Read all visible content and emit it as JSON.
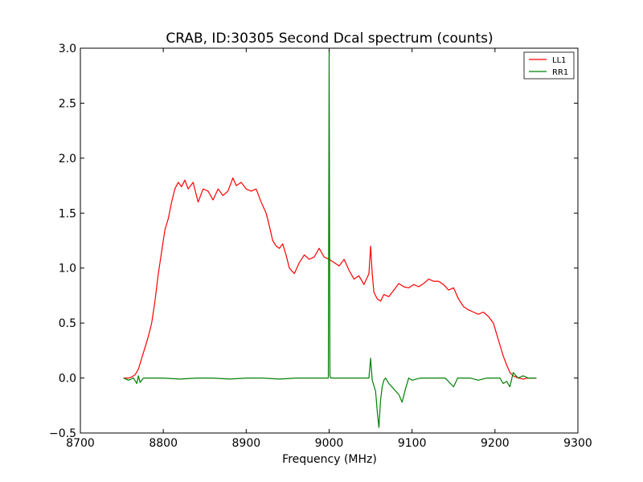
{
  "chart_data": {
    "type": "line",
    "title": "CRAB, ID:30305 Second Dcal spectrum (counts)",
    "xlabel": "Frequency (MHz)",
    "ylabel": "",
    "xlim": [
      8700,
      9300
    ],
    "ylim": [
      -0.5,
      3.0
    ],
    "x_ticks": [
      "8700",
      "8800",
      "8900",
      "9000",
      "9100",
      "9200",
      "9300"
    ],
    "y_ticks": [
      "−0.5",
      "0.0",
      "0.5",
      "1.0",
      "1.5",
      "2.0",
      "2.5",
      "3.0"
    ],
    "grid": false,
    "legend_position": "top-right",
    "series": [
      {
        "name": "LL1",
        "color": "#ff0000",
        "x": [
          8752,
          8758,
          8762,
          8766,
          8770,
          8774,
          8778,
          8782,
          8786,
          8790,
          8794,
          8798,
          8802,
          8806,
          8810,
          8814,
          8818,
          8822,
          8826,
          8830,
          8836,
          8842,
          8848,
          8854,
          8860,
          8866,
          8872,
          8878,
          8884,
          8888,
          8894,
          8900,
          8906,
          8912,
          8918,
          8924,
          8928,
          8932,
          8936,
          8940,
          8944,
          8948,
          8952,
          8958,
          8964,
          8970,
          8976,
          8982,
          8988,
          8994,
          9000,
          9006,
          9012,
          9018,
          9024,
          9030,
          9036,
          9042,
          9048,
          9050,
          9052,
          9054,
          9058,
          9062,
          9066,
          9072,
          9078,
          9084,
          9090,
          9096,
          9102,
          9108,
          9114,
          9120,
          9126,
          9132,
          9138,
          9144,
          9150,
          9156,
          9162,
          9168,
          9174,
          9180,
          9186,
          9192,
          9198,
          9202,
          9206,
          9210,
          9214,
          9218,
          9222,
          9228,
          9234,
          9240,
          9246,
          9250
        ],
        "y": [
          0.0,
          0.0,
          0.01,
          0.03,
          0.08,
          0.18,
          0.28,
          0.38,
          0.5,
          0.7,
          0.95,
          1.15,
          1.35,
          1.45,
          1.6,
          1.72,
          1.78,
          1.74,
          1.8,
          1.72,
          1.78,
          1.6,
          1.72,
          1.7,
          1.62,
          1.72,
          1.66,
          1.7,
          1.82,
          1.75,
          1.78,
          1.72,
          1.7,
          1.72,
          1.6,
          1.5,
          1.38,
          1.25,
          1.2,
          1.18,
          1.22,
          1.12,
          1.0,
          0.95,
          1.05,
          1.12,
          1.08,
          1.1,
          1.18,
          1.1,
          1.08,
          1.05,
          1.02,
          1.08,
          0.98,
          0.9,
          0.93,
          0.85,
          0.95,
          1.2,
          0.95,
          0.78,
          0.72,
          0.7,
          0.76,
          0.74,
          0.8,
          0.86,
          0.83,
          0.82,
          0.85,
          0.83,
          0.86,
          0.9,
          0.88,
          0.88,
          0.85,
          0.8,
          0.82,
          0.72,
          0.65,
          0.62,
          0.6,
          0.58,
          0.6,
          0.56,
          0.5,
          0.4,
          0.3,
          0.2,
          0.12,
          0.05,
          0.02,
          0.0,
          -0.01,
          0.0,
          0.0,
          0.0
        ]
      },
      {
        "name": "RR1",
        "color": "#008000",
        "x": [
          8752,
          8758,
          8764,
          8768,
          8770,
          8772,
          8776,
          8780,
          8790,
          8800,
          8820,
          8840,
          8860,
          8880,
          8900,
          8920,
          8940,
          8960,
          8980,
          8999,
          9000,
          9001,
          9002,
          9010,
          9020,
          9030,
          9040,
          9048,
          9050,
          9052,
          9056,
          9058,
          9060,
          9062,
          9064,
          9066,
          9068,
          9072,
          9078,
          9084,
          9088,
          9092,
          9094,
          9096,
          9100,
          9110,
          9120,
          9130,
          9140,
          9150,
          9155,
          9160,
          9170,
          9180,
          9190,
          9200,
          9206,
          9210,
          9214,
          9218,
          9222,
          9228,
          9234,
          9240,
          9250
        ],
        "y": [
          0.0,
          -0.02,
          0.0,
          -0.05,
          0.02,
          -0.04,
          0.0,
          0.0,
          0.0,
          0.0,
          -0.01,
          0.0,
          0.0,
          -0.01,
          0.0,
          0.0,
          -0.01,
          0.0,
          0.0,
          0.0,
          2.97,
          0.02,
          0.0,
          0.0,
          0.0,
          0.0,
          0.0,
          0.0,
          0.18,
          -0.02,
          -0.12,
          -0.3,
          -0.45,
          -0.2,
          -0.08,
          -0.02,
          0.0,
          -0.05,
          -0.1,
          -0.15,
          -0.22,
          -0.1,
          -0.05,
          0.0,
          -0.02,
          0.0,
          0.0,
          0.0,
          0.0,
          -0.08,
          0.0,
          0.0,
          0.0,
          -0.02,
          0.0,
          0.0,
          0.0,
          -0.05,
          -0.03,
          -0.08,
          0.05,
          0.0,
          0.02,
          0.0,
          0.0
        ]
      }
    ]
  }
}
